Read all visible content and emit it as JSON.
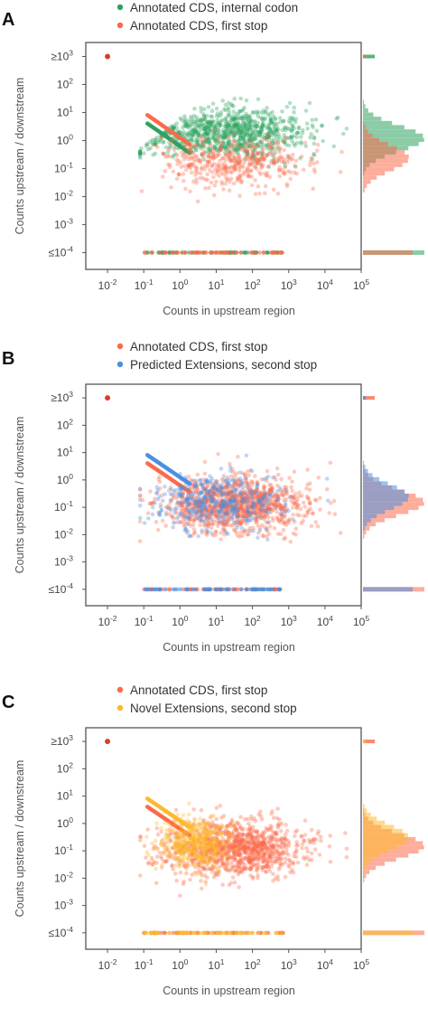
{
  "chart_data": [
    {
      "type": "scatter",
      "panel": "A",
      "xlabel": "Counts in upstream region",
      "ylabel": "Counts upstream / downstream",
      "x_scale": "log",
      "y_scale": "log",
      "xlim_exp": [
        -2.6,
        5
      ],
      "ylim_exp": [
        -4.6,
        3.5
      ],
      "x_ticks": [
        "10^-2",
        "10^-1",
        "10^0",
        "10^1",
        "10^2",
        "10^3",
        "10^4",
        "10^5"
      ],
      "y_ticks": [
        "≥10^3",
        "10^2",
        "10^1",
        "10^0",
        "10^-1",
        "10^-2",
        "10^-3",
        "≤10^-4"
      ],
      "series": [
        {
          "name": "Annotated CDS, internal codon",
          "color": "#2ca25f",
          "cluster": {
            "x_center_log": 1.3,
            "y_center_log": 0.3,
            "x_spread": 1.1,
            "y_spread": 0.45
          },
          "histogram_peak_log_y": 0.0
        },
        {
          "name": "Annotated CDS, first stop",
          "color": "#fb6a4a",
          "cluster": {
            "x_center_log": 1.5,
            "y_center_log": -0.8,
            "x_spread": 1.0,
            "y_spread": 0.45
          },
          "histogram_peak_log_y": -0.7
        }
      ],
      "outlier_point": {
        "x": 0.01,
        "y": 1000
      },
      "floor_value": 0.0001,
      "grid": false,
      "legend_position": "top"
    },
    {
      "type": "scatter",
      "panel": "B",
      "xlabel": "Counts in upstream region",
      "ylabel": "Counts upstream / downstream",
      "x_scale": "log",
      "y_scale": "log",
      "xlim_exp": [
        -2.6,
        5
      ],
      "ylim_exp": [
        -4.6,
        3.5
      ],
      "x_ticks": [
        "10^-2",
        "10^-1",
        "10^0",
        "10^1",
        "10^2",
        "10^3",
        "10^4",
        "10^5"
      ],
      "y_ticks": [
        "≥10^3",
        "10^2",
        "10^1",
        "10^0",
        "10^-1",
        "10^-2",
        "10^-3",
        "≤10^-4"
      ],
      "series": [
        {
          "name": "Annotated CDS, first stop",
          "color": "#fb6a4a",
          "cluster": {
            "x_center_log": 1.5,
            "y_center_log": -0.9,
            "x_spread": 1.0,
            "y_spread": 0.5
          },
          "histogram_peak_log_y": -0.9
        },
        {
          "name": "Predicted Extensions, second stop",
          "color": "#4a90e2",
          "cluster": {
            "x_center_log": 1.0,
            "y_center_log": -0.8,
            "x_spread": 0.9,
            "y_spread": 0.5
          },
          "histogram_peak_log_y": -0.7
        }
      ],
      "outlier_point": {
        "x": 0.01,
        "y": 1000
      },
      "floor_value": 0.0001,
      "grid": false,
      "legend_position": "top"
    },
    {
      "type": "scatter",
      "panel": "C",
      "xlabel": "Counts in upstream region",
      "ylabel": "Counts upstream / downstream",
      "x_scale": "log",
      "y_scale": "log",
      "xlim_exp": [
        -2.6,
        5
      ],
      "ylim_exp": [
        -4.6,
        3.5
      ],
      "x_ticks": [
        "10^-2",
        "10^-1",
        "10^0",
        "10^1",
        "10^2",
        "10^3",
        "10^4",
        "10^5"
      ],
      "y_ticks": [
        "≥10^3",
        "10^2",
        "10^1",
        "10^0",
        "10^-1",
        "10^-2",
        "10^-3",
        "≤10^-4"
      ],
      "series": [
        {
          "name": "Annotated CDS, first stop",
          "color": "#fb6a4a",
          "cluster": {
            "x_center_log": 1.5,
            "y_center_log": -0.9,
            "x_spread": 1.0,
            "y_spread": 0.5
          },
          "histogram_peak_log_y": -0.9
        },
        {
          "name": "Novel Extensions, second stop",
          "color": "#fdb92e",
          "cluster": {
            "x_center_log": 0.4,
            "y_center_log": -0.7,
            "x_spread": 0.5,
            "y_spread": 0.45
          },
          "histogram_peak_log_y": -0.6
        }
      ],
      "outlier_point": {
        "x": 0.01,
        "y": 1000
      },
      "floor_value": 0.0001,
      "grid": false,
      "legend_position": "top"
    }
  ]
}
